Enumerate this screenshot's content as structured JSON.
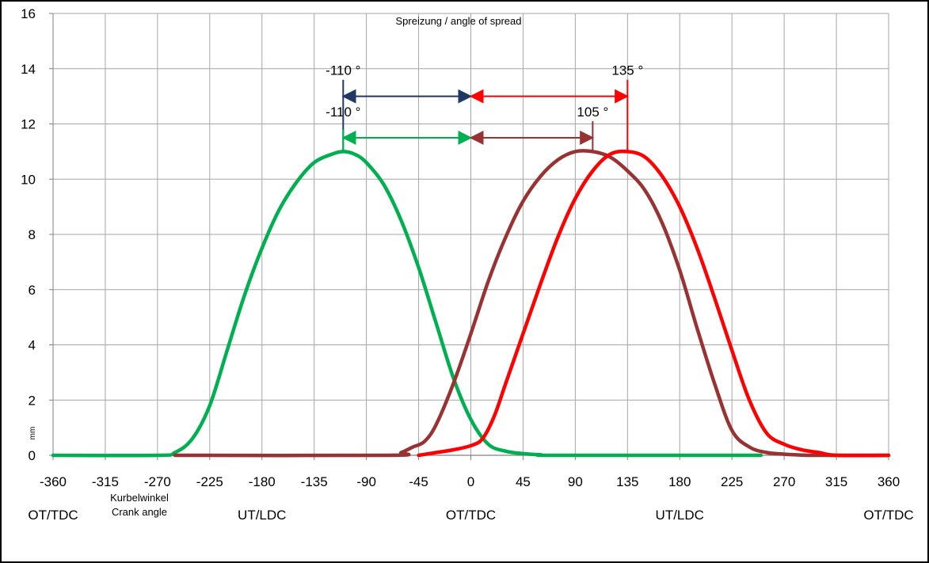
{
  "chart_data": {
    "type": "line",
    "title": "Spreizung / angle of spread",
    "xlabel": [
      "Kurbelwinkel",
      "Crank angle"
    ],
    "ylabel": "mm",
    "xlim": [
      -360,
      360
    ],
    "ylim": [
      0,
      16
    ],
    "xticks": [
      -360,
      -315,
      -270,
      -225,
      -180,
      -135,
      -90,
      -45,
      0,
      45,
      90,
      135,
      180,
      225,
      270,
      315,
      360
    ],
    "yticks": [
      0,
      2,
      4,
      6,
      8,
      10,
      12,
      14,
      16
    ],
    "grid": true,
    "position_labels": [
      {
        "x": -360,
        "text": "OT/TDC"
      },
      {
        "x": -180,
        "text": "UT/LDC"
      },
      {
        "x": 0,
        "text": "OT/TDC"
      },
      {
        "x": 180,
        "text": "UT/LDC"
      },
      {
        "x": 360,
        "text": "OT/TDC"
      }
    ],
    "series": [
      {
        "color": "#00b050",
        "points": [
          [
            -360,
            0
          ],
          [
            -270,
            0
          ],
          [
            -255,
            0.1
          ],
          [
            -240,
            0.6
          ],
          [
            -225,
            1.8
          ],
          [
            -210,
            3.8
          ],
          [
            -195,
            5.8
          ],
          [
            -180,
            7.5
          ],
          [
            -165,
            8.9
          ],
          [
            -150,
            9.9
          ],
          [
            -135,
            10.6
          ],
          [
            -120,
            10.9
          ],
          [
            -110,
            11.0
          ],
          [
            -100,
            10.9
          ],
          [
            -90,
            10.6
          ],
          [
            -75,
            9.8
          ],
          [
            -60,
            8.5
          ],
          [
            -45,
            6.8
          ],
          [
            -30,
            4.8
          ],
          [
            -15,
            2.8
          ],
          [
            0,
            1.3
          ],
          [
            15,
            0.4
          ],
          [
            30,
            0.15
          ],
          [
            45,
            0.06
          ],
          [
            60,
            0.02
          ],
          [
            75,
            0
          ],
          [
            250,
            0
          ]
        ]
      },
      {
        "color": "#993333",
        "points": [
          [
            -255,
            0
          ],
          [
            -70,
            0
          ],
          [
            -60,
            0.1
          ],
          [
            -50,
            0.3
          ],
          [
            -40,
            0.5
          ],
          [
            -30,
            1.1
          ],
          [
            -15,
            2.6
          ],
          [
            0,
            4.4
          ],
          [
            15,
            6.3
          ],
          [
            30,
            7.9
          ],
          [
            45,
            9.2
          ],
          [
            60,
            10.1
          ],
          [
            75,
            10.7
          ],
          [
            90,
            11.0
          ],
          [
            105,
            11.0
          ],
          [
            120,
            10.8
          ],
          [
            135,
            10.3
          ],
          [
            150,
            9.6
          ],
          [
            165,
            8.4
          ],
          [
            180,
            6.7
          ],
          [
            195,
            4.6
          ],
          [
            210,
            2.6
          ],
          [
            225,
            0.9
          ],
          [
            240,
            0.3
          ],
          [
            255,
            0.1
          ],
          [
            270,
            0.04
          ],
          [
            285,
            0.01
          ],
          [
            300,
            0
          ],
          [
            360,
            0
          ]
        ]
      },
      {
        "color": "#ff0000",
        "points": [
          [
            -45,
            0
          ],
          [
            -30,
            0.1
          ],
          [
            -15,
            0.2
          ],
          [
            0,
            0.35
          ],
          [
            10,
            0.6
          ],
          [
            20,
            1.4
          ],
          [
            30,
            2.6
          ],
          [
            45,
            4.4
          ],
          [
            60,
            6.2
          ],
          [
            75,
            7.9
          ],
          [
            90,
            9.3
          ],
          [
            105,
            10.3
          ],
          [
            120,
            10.9
          ],
          [
            135,
            11.0
          ],
          [
            150,
            10.8
          ],
          [
            165,
            10.1
          ],
          [
            180,
            9.0
          ],
          [
            195,
            7.5
          ],
          [
            210,
            5.7
          ],
          [
            225,
            3.8
          ],
          [
            240,
            2.0
          ],
          [
            255,
            0.8
          ],
          [
            270,
            0.4
          ],
          [
            285,
            0.2
          ],
          [
            300,
            0.1
          ],
          [
            315,
            0
          ],
          [
            360,
            0
          ]
        ]
      }
    ],
    "annotations": [
      {
        "text": "-110 °",
        "arrow_from": -110,
        "arrow_to": 0,
        "y": 13,
        "color": "#1f3864"
      },
      {
        "text": "-110 °",
        "arrow_from": -110,
        "arrow_to": 0,
        "y": 11.5,
        "color": "#00b050"
      },
      {
        "text": "135 °",
        "arrow_from": 0,
        "arrow_to": 135,
        "y": 13,
        "color": "#ff0000"
      },
      {
        "text": "105 °",
        "arrow_from": 0,
        "arrow_to": 105,
        "y": 11.5,
        "color": "#993333"
      }
    ]
  }
}
